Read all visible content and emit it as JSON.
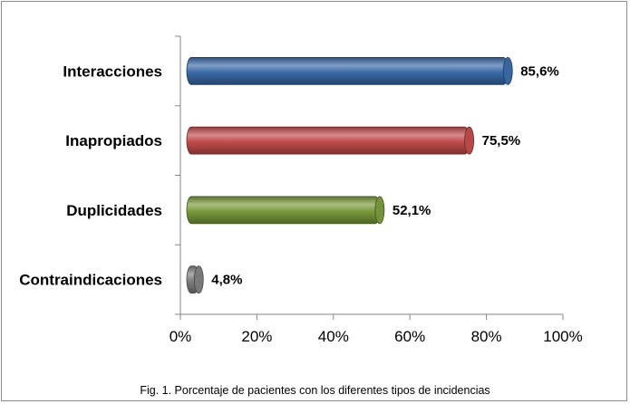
{
  "caption": "Fig. 1. Porcentaje de pacientes con los diferentes tipos de incidencias",
  "chart_data": {
    "type": "bar",
    "orientation": "horizontal",
    "categories": [
      "Interacciones",
      "Inapropiados",
      "Duplicidades",
      "Contraindicaciones"
    ],
    "values": [
      85.6,
      75.5,
      52.1,
      4.8
    ],
    "value_labels": [
      "85,6%",
      "75,5%",
      "52,1%",
      "4,8%"
    ],
    "colors": [
      "#3c6aa8",
      "#c24b4c",
      "#7a9a3c",
      "#7f7f7f"
    ],
    "xlim": [
      0,
      100
    ],
    "xticks": [
      0,
      20,
      40,
      60,
      80,
      100
    ],
    "xtick_labels": [
      "0%",
      "20%",
      "40%",
      "60%",
      "80%",
      "100%"
    ],
    "grid": false,
    "legend": "none"
  }
}
